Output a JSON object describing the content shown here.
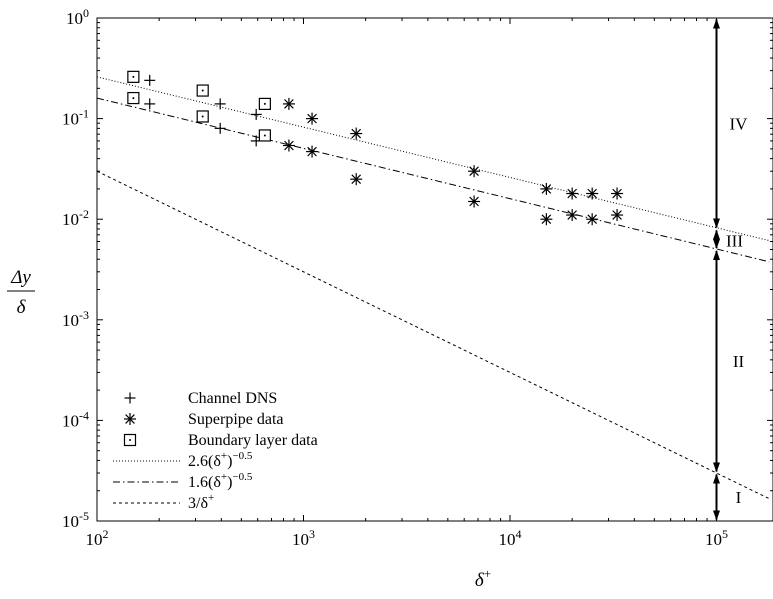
{
  "chart_data": {
    "type": "scatter",
    "xscale": "log",
    "yscale": "log",
    "xlim": [
      100,
      180000
    ],
    "ylim": [
      1e-05,
      1
    ],
    "xlabel": "δ+",
    "ylabel": {
      "numerator": "Δy",
      "denominator": "δ"
    },
    "x_ticks": [
      {
        "value": 100,
        "base": "10",
        "exp": "2"
      },
      {
        "value": 1000,
        "base": "10",
        "exp": "3"
      },
      {
        "value": 10000,
        "base": "10",
        "exp": "4"
      },
      {
        "value": 100000,
        "base": "10",
        "exp": "5"
      }
    ],
    "y_ticks": [
      {
        "value": 1e-05,
        "base": "10",
        "exp": "-5"
      },
      {
        "value": 0.0001,
        "base": "10",
        "exp": "-4"
      },
      {
        "value": 0.001,
        "base": "10",
        "exp": "-3"
      },
      {
        "value": 0.01,
        "base": "10",
        "exp": "-2"
      },
      {
        "value": 0.1,
        "base": "10",
        "exp": "-1"
      },
      {
        "value": 1,
        "base": "10",
        "exp": "0"
      }
    ],
    "grid": false,
    "legend_position": "bottom-left",
    "series": [
      {
        "name": "Channel DNS",
        "marker": "plus",
        "x": [
          180,
          180,
          395,
          395,
          590,
          590
        ],
        "y": [
          0.24,
          0.14,
          0.14,
          0.08,
          0.11,
          0.06
        ]
      },
      {
        "name": "Superpipe data",
        "marker": "asterisk",
        "x": [
          850,
          850,
          1100,
          1100,
          1800,
          1800,
          6700,
          6700,
          15000,
          15000,
          20000,
          20000,
          25000,
          25000,
          33000,
          33000
        ],
        "y": [
          0.14,
          0.054,
          0.1,
          0.047,
          0.071,
          0.025,
          0.03,
          0.015,
          0.02,
          0.01,
          0.018,
          0.011,
          0.018,
          0.01,
          0.018,
          0.011
        ]
      },
      {
        "name": "Boundary layer data",
        "marker": "dotted-square",
        "x": [
          150,
          150,
          325,
          325,
          650,
          650
        ],
        "y": [
          0.26,
          0.16,
          0.19,
          0.105,
          0.14,
          0.068
        ]
      }
    ],
    "lines": [
      {
        "name": "2.6(δ+)−0.5",
        "coef": 2.6,
        "exp": -0.5,
        "dash": "1,2"
      },
      {
        "name": "1.6(δ+)−0.5",
        "coef": 1.6,
        "exp": -0.5,
        "dash": "7,3,1.5,3"
      },
      {
        "name": "3/δ+",
        "coef": 3,
        "exp": -1,
        "dash": "3,3"
      }
    ],
    "legend": [
      {
        "kind": "marker",
        "marker": "plus",
        "label": "Channel DNS"
      },
      {
        "kind": "marker",
        "marker": "asterisk",
        "label": "Superpipe data"
      },
      {
        "kind": "marker",
        "marker": "dotted-square",
        "label": "Boundary layer data"
      },
      {
        "kind": "line",
        "dash": "1,2",
        "base": "2.6(δ",
        "sup1": "+",
        "mid": ")",
        "sup2": "−0.5"
      },
      {
        "kind": "line",
        "dash": "7,3,1.5,3",
        "base": "1.6(δ",
        "sup1": "+",
        "mid": ")",
        "sup2": "−0.5"
      },
      {
        "kind": "line",
        "dash": "3,3",
        "base": "3/δ",
        "sup1": "+",
        "mid": "",
        "sup2": ""
      }
    ],
    "regions": {
      "x": 100000,
      "boundaries": [
        1e-05,
        3e-05,
        0.005,
        0.008,
        1
      ],
      "labels": [
        "I",
        "II",
        "III",
        "IV"
      ]
    }
  }
}
